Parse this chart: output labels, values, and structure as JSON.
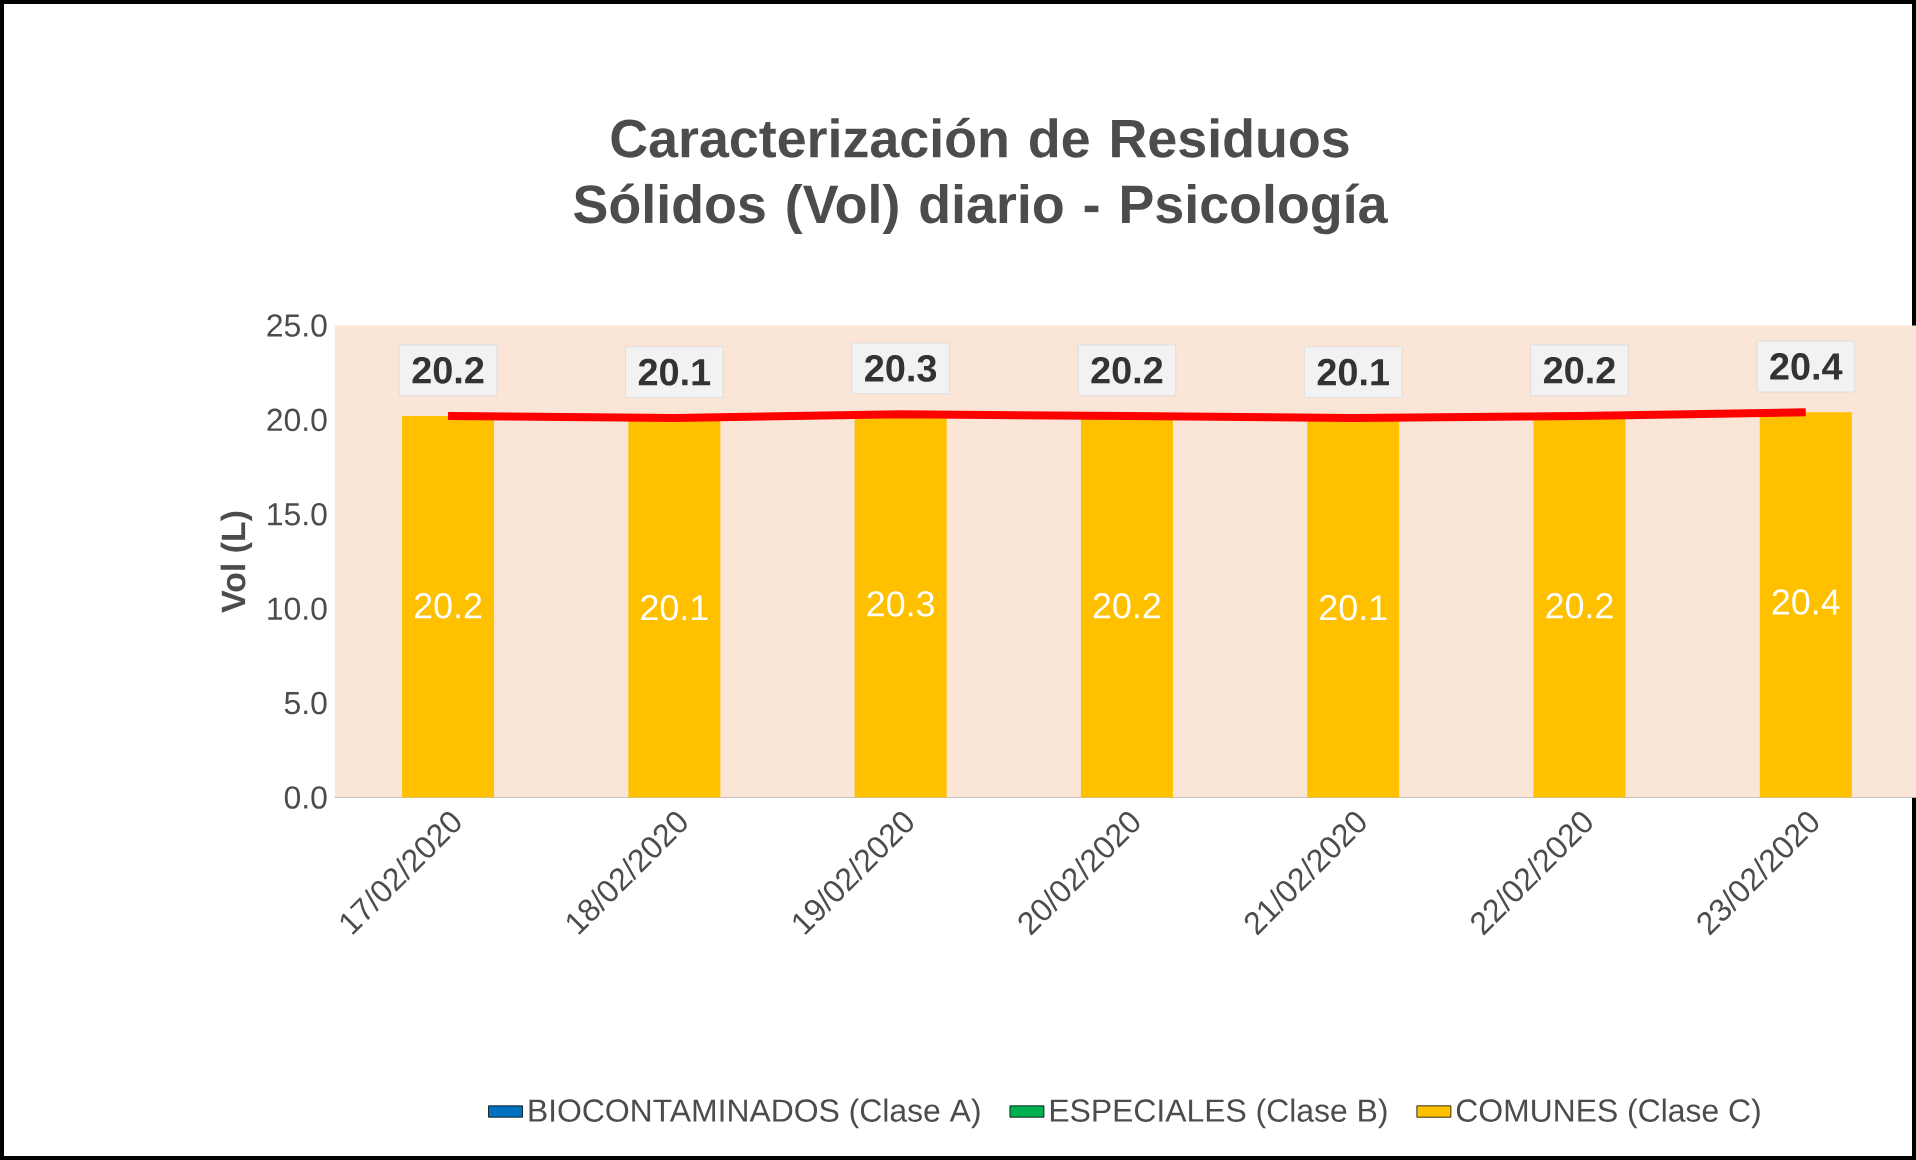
{
  "chart_data": {
    "type": "bar",
    "title": "Caracterización de Residuos Sólidos (Vol) diario - Psicología",
    "ylabel": "Vol (L)",
    "categories": [
      "17/02/2020",
      "18/02/2020",
      "19/02/2020",
      "20/02/2020",
      "21/02/2020",
      "22/02/2020",
      "23/02/2020"
    ],
    "series": [
      {
        "name": "BIOCONTAMINADOS (Clase A)",
        "color": "#0070c0",
        "values": [
          0,
          0,
          0,
          0,
          0,
          0,
          0
        ]
      },
      {
        "name": "ESPECIALES (Clase B)",
        "color": "#00b050",
        "values": [
          0,
          0,
          0,
          0,
          0,
          0,
          0
        ]
      },
      {
        "name": "COMUNES (Clase C)",
        "color": "#ffc000",
        "values": [
          20.2,
          20.1,
          20.3,
          20.2,
          20.1,
          20.2,
          20.4
        ],
        "value_labels": [
          "20.2",
          "20.1",
          "20.3",
          "20.2",
          "20.1",
          "20.2",
          "20.4"
        ]
      },
      {
        "type": "line",
        "color": "#ff0000",
        "values": [
          20.2,
          20.1,
          20.3,
          20.2,
          20.1,
          20.2,
          20.4
        ],
        "value_labels": [
          "20.2",
          "20.1",
          "20.3",
          "20.2",
          "20.1",
          "20.2",
          "20.4"
        ]
      }
    ],
    "ylim": [
      0,
      25
    ],
    "yticks": [
      {
        "value": 0,
        "label": "0.0"
      },
      {
        "value": 5,
        "label": "5.0"
      },
      {
        "value": 10,
        "label": "10.0"
      },
      {
        "value": 15,
        "label": "15.0"
      },
      {
        "value": 20,
        "label": "20.0"
      },
      {
        "value": 25,
        "label": "25.0"
      }
    ],
    "grid": false,
    "legend": "bottom"
  }
}
